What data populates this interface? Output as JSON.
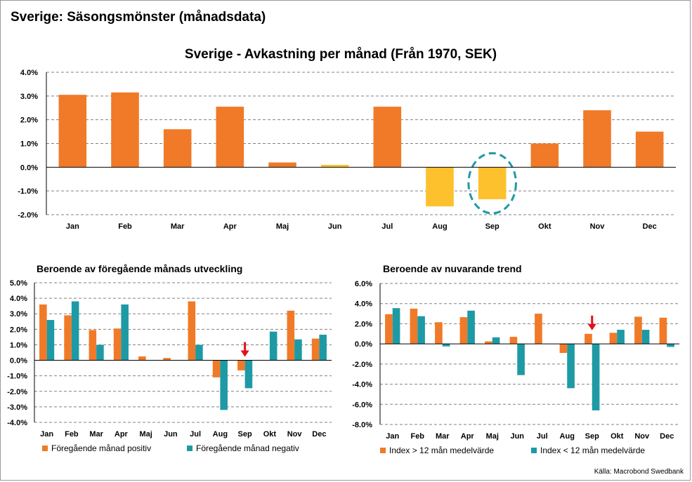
{
  "page_title": "Sverige: Säsongsmönster (månadsdata)",
  "source": "Källa: Macrobond Swedbank",
  "colors": {
    "orange": "#f07a28",
    "yellow": "#fcc12c",
    "teal": "#1e9aa5",
    "grid": "#808080",
    "highlight": "#1e9aa5",
    "arrow": "#e3101a"
  },
  "chart_data": [
    {
      "id": "main",
      "type": "bar",
      "title": "Sverige - Avkastning per månad (Från 1970, SEK)",
      "categories": [
        "Jan",
        "Feb",
        "Mar",
        "Apr",
        "Maj",
        "Jun",
        "Jul",
        "Aug",
        "Sep",
        "Okt",
        "Nov",
        "Dec"
      ],
      "values": [
        3.05,
        3.15,
        1.6,
        2.55,
        0.2,
        0.1,
        2.55,
        -1.65,
        -1.35,
        1.0,
        2.4,
        1.5
      ],
      "highlighted_months": [
        "Jun",
        "Aug",
        "Sep"
      ],
      "circled_month": "Sep",
      "yticks": [
        "4.0%",
        "3.0%",
        "2.0%",
        "1.0%",
        "0.0%",
        "-1.0%",
        "-2.0%"
      ],
      "ylim": [
        -2.0,
        4.0
      ]
    },
    {
      "id": "prev-month",
      "type": "bar",
      "title": "Beroende av föregående månads utveckling",
      "categories": [
        "Jan",
        "Feb",
        "Mar",
        "Apr",
        "Maj",
        "Jun",
        "Jul",
        "Aug",
        "Sep",
        "Okt",
        "Nov",
        "Dec"
      ],
      "series": [
        {
          "name": "Föregående månad positiv",
          "values": [
            3.6,
            2.9,
            1.95,
            2.05,
            0.25,
            0.15,
            3.8,
            -1.1,
            -0.65,
            0.0,
            3.2,
            1.4
          ]
        },
        {
          "name": "Föregående månad negativ",
          "values": [
            2.6,
            3.8,
            1.0,
            3.6,
            0.0,
            0.0,
            1.0,
            -3.2,
            -1.8,
            1.85,
            1.35,
            1.65
          ]
        }
      ],
      "arrow_month": "Sep",
      "yticks": [
        "5.0%",
        "4.0%",
        "3.0%",
        "2.0%",
        "1.0%",
        "0.0%",
        "-1.0%",
        "-2.0%",
        "-3.0%",
        "-4.0%"
      ],
      "ylim": [
        -4.0,
        5.0
      ]
    },
    {
      "id": "trend",
      "type": "bar",
      "title": "Beroende av nuvarande trend",
      "categories": [
        "Jan",
        "Feb",
        "Mar",
        "Apr",
        "Maj",
        "Jun",
        "Jul",
        "Aug",
        "Sep",
        "Okt",
        "Nov",
        "Dec"
      ],
      "series": [
        {
          "name": "Index > 12 mån medelvärde",
          "values": [
            2.95,
            3.5,
            2.15,
            2.65,
            0.25,
            0.7,
            3.0,
            -0.9,
            1.0,
            1.1,
            2.7,
            2.6
          ]
        },
        {
          "name": "Index < 12 mån medelvärde",
          "values": [
            3.55,
            2.75,
            -0.25,
            3.3,
            0.65,
            -3.1,
            0.0,
            -4.4,
            -6.6,
            1.4,
            1.4,
            -0.3
          ]
        }
      ],
      "arrow_month": "Sep",
      "yticks": [
        "6.0%",
        "4.0%",
        "2.0%",
        "0.0%",
        "-2.0%",
        "-4.0%",
        "-6.0%",
        "-8.0%"
      ],
      "ylim": [
        -8.0,
        6.0
      ]
    }
  ]
}
